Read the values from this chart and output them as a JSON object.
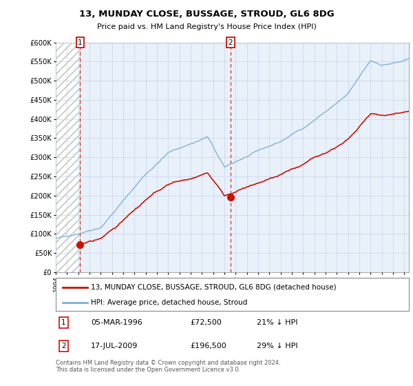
{
  "title": "13, MUNDAY CLOSE, BUSSAGE, STROUD, GL6 8DG",
  "subtitle": "Price paid vs. HM Land Registry's House Price Index (HPI)",
  "ylim": [
    0,
    600000
  ],
  "xlim_start": 1994.0,
  "xlim_end": 2025.4,
  "sale1_date": 1996.17,
  "sale1_price": 72500,
  "sale1_label": "1",
  "sale2_date": 2009.54,
  "sale2_price": 196500,
  "sale2_label": "2",
  "legend_line1": "13, MUNDAY CLOSE, BUSSAGE, STROUD, GL6 8DG (detached house)",
  "legend_line2": "HPI: Average price, detached house, Stroud",
  "hpi_color": "#7bafd4",
  "sale_color": "#cc1100",
  "bg_color": "#e8f0fa",
  "grid_color": "#c8d4e8",
  "border_color": "#aaaaaa",
  "footnote1": "Contains HM Land Registry data © Crown copyright and database right 2024.",
  "footnote2": "This data is licensed under the Open Government Licence v3.0."
}
